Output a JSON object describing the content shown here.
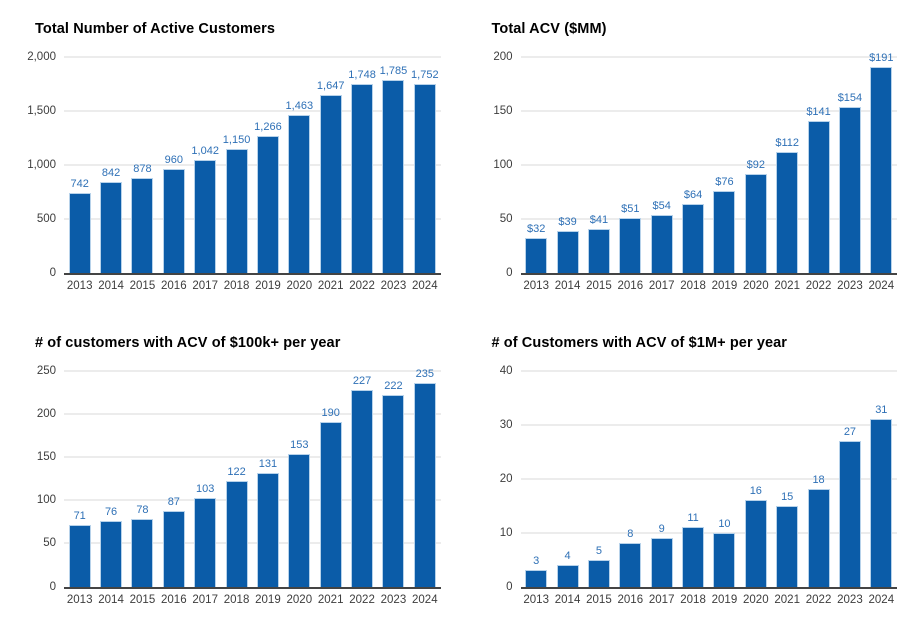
{
  "colors": {
    "bar": "#0b5ca8",
    "bar_border": "#b7d2ea",
    "data_label": "#2e70b6",
    "grid": "#d9d9d9",
    "axis_line": "#444444",
    "tick_text": "#3d3d3d",
    "title_text": "#000000",
    "background": "#ffffff"
  },
  "chart_data": [
    {
      "type": "bar",
      "title": "Total Number of Active Customers",
      "categories": [
        "2013",
        "2014",
        "2015",
        "2016",
        "2017",
        "2018",
        "2019",
        "2020",
        "2021",
        "2022",
        "2023",
        "2024"
      ],
      "values": [
        742,
        842,
        878,
        960,
        1042,
        1150,
        1266,
        1463,
        1647,
        1748,
        1785,
        1752
      ],
      "value_labels": [
        "742",
        "842",
        "878",
        "960",
        "1,042",
        "1,150",
        "1,266",
        "1,463",
        "1,647",
        "1,748",
        "1,785",
        "1,752"
      ],
      "xlabel": "",
      "ylabel": "",
      "ylim": [
        0,
        2000
      ],
      "yticks": [
        0,
        500,
        1000,
        1500,
        2000
      ],
      "ytick_labels": [
        "0",
        "500",
        "1,000",
        "1,500",
        "2,000"
      ],
      "grid": "horizontal",
      "legend": "none"
    },
    {
      "type": "bar",
      "title": "Total ACV ($MM)",
      "categories": [
        "2013",
        "2014",
        "2015",
        "2016",
        "2017",
        "2018",
        "2019",
        "2020",
        "2021",
        "2022",
        "2023",
        "2024"
      ],
      "values": [
        32,
        39,
        41,
        51,
        54,
        64,
        76,
        92,
        112,
        141,
        154,
        191
      ],
      "value_labels": [
        "$32",
        "$39",
        "$41",
        "$51",
        "$54",
        "$64",
        "$76",
        "$92",
        "$112",
        "$141",
        "$154",
        "$191"
      ],
      "xlabel": "",
      "ylabel": "",
      "ylim": [
        0,
        200
      ],
      "yticks": [
        0,
        50,
        100,
        150,
        200
      ],
      "ytick_labels": [
        "0",
        "50",
        "100",
        "150",
        "200"
      ],
      "grid": "horizontal",
      "legend": "none"
    },
    {
      "type": "bar",
      "title": "# of customers with ACV of $100k+ per year",
      "categories": [
        "2013",
        "2014",
        "2015",
        "2016",
        "2017",
        "2018",
        "2019",
        "2020",
        "2021",
        "2022",
        "2023",
        "2024"
      ],
      "values": [
        71,
        76,
        78,
        87,
        103,
        122,
        131,
        153,
        190,
        227,
        222,
        235
      ],
      "value_labels": [
        "71",
        "76",
        "78",
        "87",
        "103",
        "122",
        "131",
        "153",
        "190",
        "227",
        "222",
        "235"
      ],
      "xlabel": "",
      "ylabel": "",
      "ylim": [
        0,
        250
      ],
      "yticks": [
        0,
        50,
        100,
        150,
        200,
        250
      ],
      "ytick_labels": [
        "0",
        "50",
        "100",
        "150",
        "200",
        "250"
      ],
      "grid": "horizontal",
      "legend": "none"
    },
    {
      "type": "bar",
      "title": "# of Customers with ACV of $1M+ per year",
      "categories": [
        "2013",
        "2014",
        "2015",
        "2016",
        "2017",
        "2018",
        "2019",
        "2020",
        "2021",
        "2022",
        "2023",
        "2024"
      ],
      "values": [
        3,
        4,
        5,
        8,
        9,
        11,
        10,
        16,
        15,
        18,
        27,
        31
      ],
      "value_labels": [
        "3",
        "4",
        "5",
        "8",
        "9",
        "11",
        "10",
        "16",
        "15",
        "18",
        "27",
        "31"
      ],
      "xlabel": "",
      "ylabel": "",
      "ylim": [
        0,
        40
      ],
      "yticks": [
        0,
        10,
        20,
        30,
        40
      ],
      "ytick_labels": [
        "0",
        "10",
        "20",
        "30",
        "40"
      ],
      "grid": "horizontal",
      "legend": "none"
    }
  ]
}
